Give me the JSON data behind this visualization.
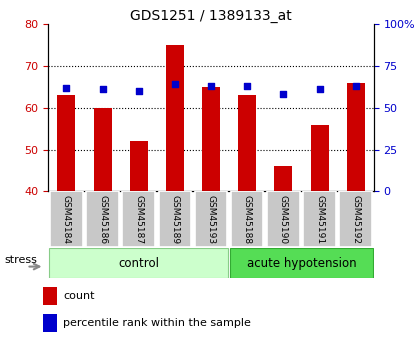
{
  "title": "GDS1251 / 1389133_at",
  "categories": [
    "GSM45184",
    "GSM45186",
    "GSM45187",
    "GSM45189",
    "GSM45193",
    "GSM45188",
    "GSM45190",
    "GSM45191",
    "GSM45192"
  ],
  "count_values": [
    63,
    60,
    52,
    75,
    65,
    63,
    46,
    56,
    66
  ],
  "percentile_values": [
    62,
    61,
    60,
    64,
    63,
    63,
    58,
    61,
    63
  ],
  "bar_bottom": 40,
  "ylim_left": [
    40,
    80
  ],
  "ylim_right": [
    0,
    100
  ],
  "yticks_left": [
    40,
    50,
    60,
    70,
    80
  ],
  "yticks_right": [
    0,
    25,
    50,
    75,
    100
  ],
  "ytick_labels_right": [
    "0",
    "25",
    "50",
    "75",
    "100%"
  ],
  "grid_lines": [
    50,
    60,
    70
  ],
  "bar_color": "#cc0000",
  "dot_color": "#0000cc",
  "n_control": 5,
  "n_acute": 4,
  "control_label": "control",
  "acute_label": "acute hypotension",
  "stress_label": "stress",
  "legend_count": "count",
  "legend_percentile": "percentile rank within the sample",
  "control_color_light": "#ccffcc",
  "acute_color": "#55dd55",
  "bar_width": 0.5,
  "dot_size": 25,
  "tick_label_color_left": "#cc0000",
  "tick_label_color_right": "#0000cc"
}
